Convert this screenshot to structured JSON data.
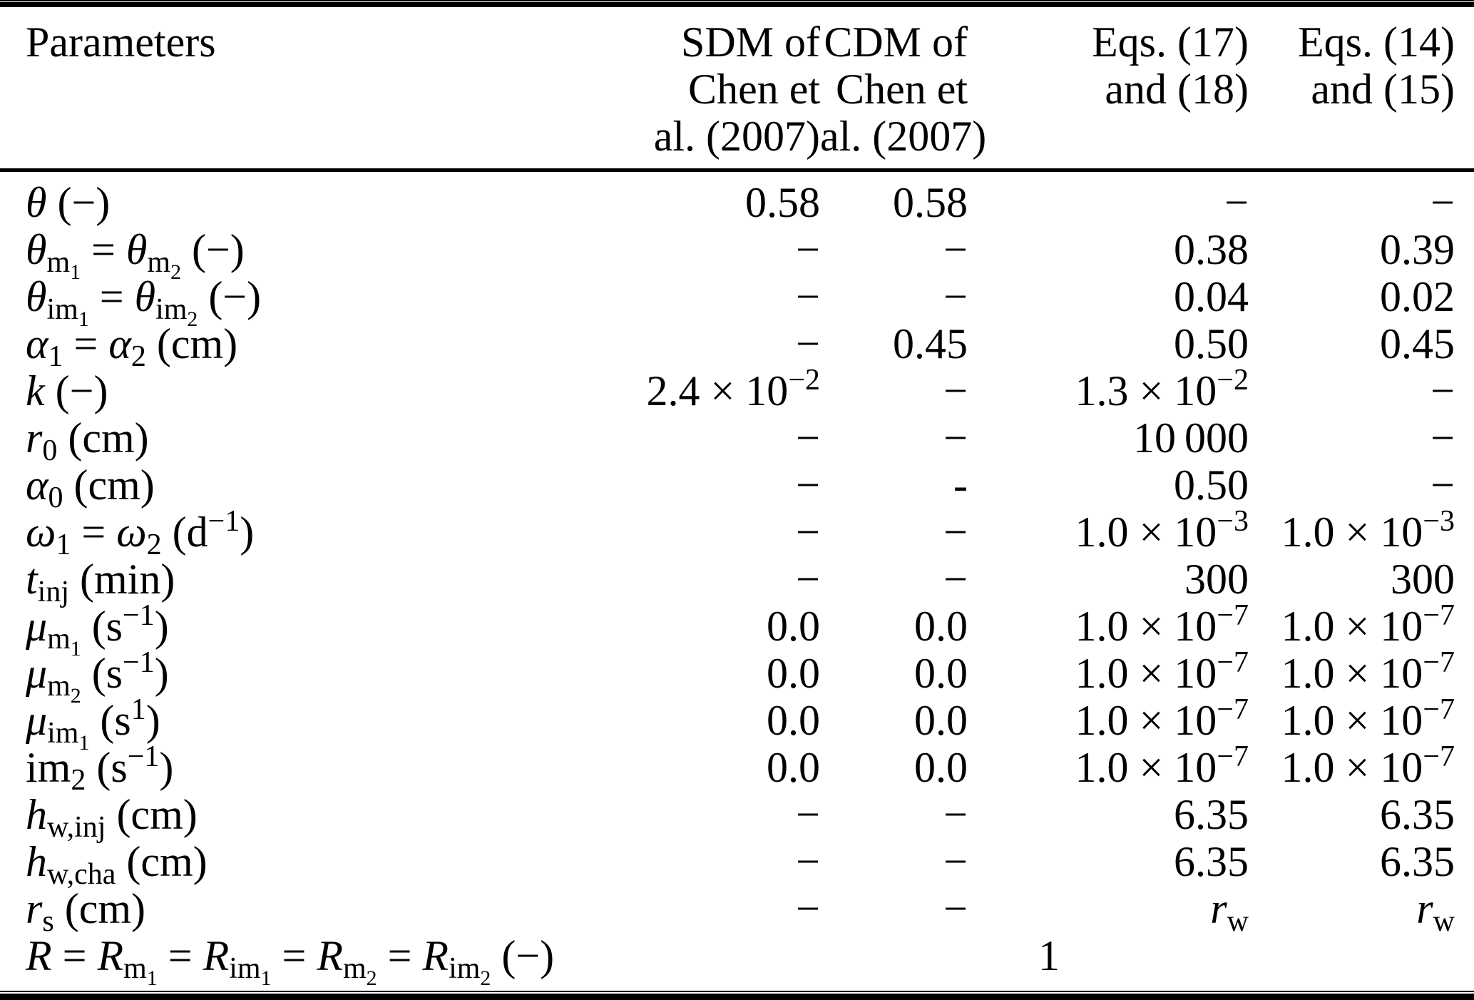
{
  "colors": {
    "background": "#ffffff",
    "text": "#000000",
    "rule": "#000000"
  },
  "header": {
    "parameters_label": "Parameters",
    "columns_html": [
      "SDM of<br>Chen et<br>al. (2007)",
      "CDM of<br>Chen et<br>al. (2007)",
      "Eqs. (17)<br>and (18)",
      "Eqs. (14)<br>and (15)"
    ]
  },
  "rows": [
    {
      "label_html": "<i>θ</i> (−)",
      "values_html": [
        "0.58",
        "0.58",
        "−",
        "−"
      ]
    },
    {
      "label_html": "<i>θ</i><sub>m<sub>1</sub></sub> = <i>θ</i><sub>m<sub>2</sub></sub> (−)",
      "values_html": [
        "−",
        "−",
        "0.38",
        "0.39"
      ]
    },
    {
      "label_html": "<i>θ</i><sub>im<sub>1</sub></sub> = <i>θ</i><sub>im<sub>2</sub></sub> (−)",
      "values_html": [
        "−",
        "−",
        "0.04",
        "0.02"
      ]
    },
    {
      "label_html": "<i>α</i><sub>1</sub> = <i>α</i><sub>2</sub> (cm)",
      "values_html": [
        "−",
        "0.45",
        "0.50",
        "0.45"
      ]
    },
    {
      "label_html": "<i>k</i> (−)",
      "values_html": [
        "2.4 × 10<sup>−2</sup>",
        "−",
        "1.3 × 10<sup>−2</sup>",
        "−"
      ]
    },
    {
      "label_html": "<i>r</i><sub>0</sub> (cm)",
      "values_html": [
        "−",
        "−",
        "10 000",
        "−"
      ]
    },
    {
      "label_html": "<i>α</i><sub>0</sub> (cm)",
      "values_html": [
        "−",
        "-",
        "0.50",
        "−"
      ]
    },
    {
      "label_html": "<i>ω</i><sub>1</sub> = <i>ω</i><sub>2</sub> (d<sup>−1</sup>)",
      "values_html": [
        "−",
        "−",
        "1.0 × 10<sup>−3</sup>",
        "1.0 × 10<sup>−3</sup>"
      ]
    },
    {
      "label_html": "<i>t</i><sub>inj</sub> (min)",
      "values_html": [
        "−",
        "−",
        "300",
        "300"
      ]
    },
    {
      "label_html": "<i>μ</i><sub>m<sub>1</sub></sub> (s<sup>−1</sup>)",
      "values_html": [
        "0.0",
        "0.0",
        "1.0 × 10<sup>−7</sup>",
        "1.0 × 10<sup>−7</sup>"
      ]
    },
    {
      "label_html": "<i>μ</i><sub>m<sub>2</sub></sub> (s<sup>−1</sup>)",
      "values_html": [
        "0.0",
        "0.0",
        "1.0 × 10<sup>−7</sup>",
        "1.0 × 10<sup>−7</sup>"
      ]
    },
    {
      "label_html": "<i>μ</i><sub>im<sub>1</sub></sub> (s<sup>1</sup>)",
      "values_html": [
        "0.0",
        "0.0",
        "1.0 × 10<sup>−7</sup>",
        "1.0 × 10<sup>−7</sup>"
      ]
    },
    {
      "label_html": "im<sub>2</sub> (s<sup>−1</sup>)",
      "values_html": [
        "0.0",
        "0.0",
        "1.0 × 10<sup>−7</sup>",
        "1.0 × 10<sup>−7</sup>"
      ]
    },
    {
      "label_html": "<i>h</i><sub>w,inj</sub> (cm)",
      "values_html": [
        "−",
        "−",
        "6.35",
        "6.35"
      ]
    },
    {
      "label_html": "<i>h</i><sub>w,cha</sub> (cm)",
      "values_html": [
        "−",
        "−",
        "6.35",
        "6.35"
      ]
    },
    {
      "label_html": "<i>r</i><sub>s</sub> (cm)",
      "values_html": [
        "−",
        "−",
        "<i>r</i><sub>w</sub>",
        "<i>r</i><sub>w</sub>"
      ]
    }
  ],
  "span_row": {
    "label_html": "<i>R</i> = <i>R</i><sub>m<sub>1</sub></sub> = <i>R</i><sub>im<sub>1</sub></sub> = <i>R</i><sub>m<sub>2</sub></sub> = <i>R</i><sub>im<sub>2</sub></sub> (−)",
    "value_html": "1"
  }
}
